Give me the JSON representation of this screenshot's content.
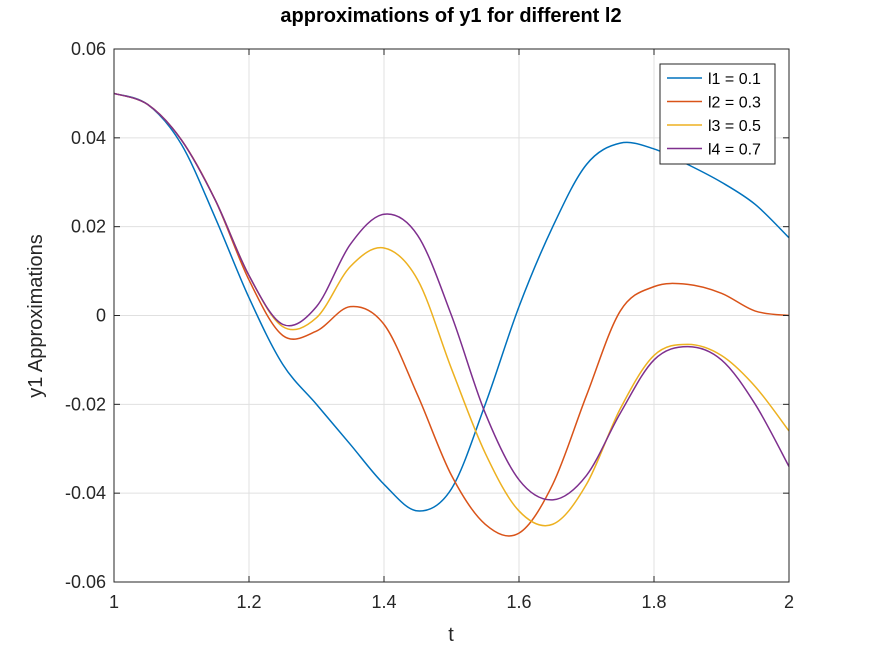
{
  "chart_data": {
    "type": "line",
    "title": "approximations of y1 for different l2",
    "xlabel": "t",
    "ylabel": "y1 Approximations",
    "xlim": [
      1,
      2
    ],
    "ylim": [
      -0.06,
      0.06
    ],
    "xticks": [
      "1",
      "1.2",
      "1.4",
      "1.6",
      "1.8",
      "2"
    ],
    "yticks": [
      "-0.06",
      "-0.04",
      "-0.02",
      "0",
      "0.02",
      "0.04",
      "0.06"
    ],
    "grid": true,
    "legend_position": "top-right",
    "x": [
      1.0,
      1.05,
      1.1,
      1.15,
      1.2,
      1.25,
      1.3,
      1.35,
      1.4,
      1.45,
      1.5,
      1.55,
      1.6,
      1.65,
      1.7,
      1.75,
      1.8,
      1.85,
      1.9,
      1.95,
      2.0
    ],
    "series": [
      {
        "name": "l1 = 0.1",
        "color": "#0072BD",
        "values": [
          0.05,
          0.0475,
          0.0385,
          0.022,
          0.004,
          -0.011,
          -0.02,
          -0.029,
          -0.038,
          -0.044,
          -0.039,
          -0.02,
          0.002,
          0.02,
          0.034,
          0.0388,
          0.0375,
          0.034,
          0.03,
          0.025,
          0.0175
        ]
      },
      {
        "name": "l2 = 0.3",
        "color": "#D95319",
        "values": [
          0.05,
          0.0475,
          0.0395,
          0.026,
          0.008,
          -0.0045,
          -0.0035,
          0.002,
          -0.002,
          -0.018,
          -0.036,
          -0.047,
          -0.049,
          -0.038,
          -0.018,
          0.001,
          0.0065,
          0.007,
          0.005,
          0.001,
          0.0
        ]
      },
      {
        "name": "l3 = 0.5",
        "color": "#EDB120",
        "values": [
          0.05,
          0.0475,
          0.0395,
          0.026,
          0.009,
          -0.0025,
          -0.0005,
          0.011,
          0.0152,
          0.008,
          -0.012,
          -0.031,
          -0.044,
          -0.047,
          -0.038,
          -0.021,
          -0.009,
          -0.0065,
          -0.009,
          -0.016,
          -0.026
        ]
      },
      {
        "name": "l4 = 0.7",
        "color": "#7E2F8E",
        "values": [
          0.05,
          0.0475,
          0.0395,
          0.026,
          0.009,
          -0.002,
          0.002,
          0.016,
          0.0228,
          0.018,
          0.0,
          -0.022,
          -0.037,
          -0.0415,
          -0.036,
          -0.022,
          -0.01,
          -0.007,
          -0.01,
          -0.02,
          -0.034
        ]
      }
    ]
  }
}
